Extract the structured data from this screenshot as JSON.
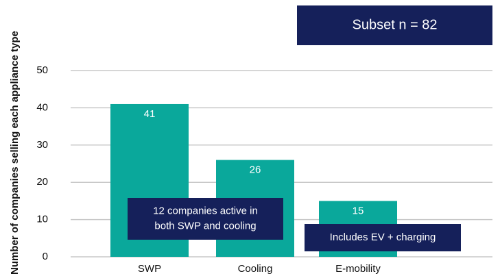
{
  "chart_data": {
    "type": "bar",
    "ylabel": "Number of companies selling each appliance type",
    "categories": [
      "SWP",
      "Cooling",
      "E-mobility"
    ],
    "values": [
      41,
      26,
      15
    ],
    "color": "#0aa89b",
    "ylim": [
      0,
      50
    ],
    "yticks": [
      0,
      10,
      20,
      30,
      40,
      50
    ],
    "grid": true,
    "annotations": [
      {
        "lines": [
          "Subset n = 82"
        ]
      },
      {
        "lines": [
          "12 companies active in",
          "both SWP and cooling"
        ]
      },
      {
        "lines": [
          "Includes EV + charging"
        ]
      }
    ]
  }
}
